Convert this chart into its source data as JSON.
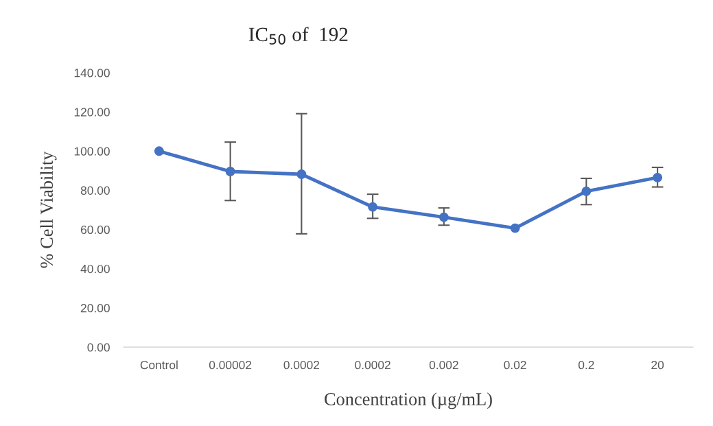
{
  "chart_data": {
    "type": "line",
    "title": "IC$_{50}$ of  192",
    "xlabel": "Concentration (µg/mL)",
    "ylabel": "% Cell Viability",
    "categories": [
      "Control",
      "0.00002",
      "0.0002",
      "0.0002",
      "0.002",
      "0.02",
      "0.2",
      "20"
    ],
    "values": [
      100.0,
      89.6,
      88.2,
      71.5,
      66.3,
      60.7,
      79.5,
      86.5
    ],
    "errors": [
      null,
      [
        74.8,
        104.6
      ],
      [
        57.8,
        119.1
      ],
      [
        65.7,
        78.0
      ],
      [
        62.2,
        71.0
      ],
      null,
      [
        72.7,
        86.1
      ],
      [
        81.7,
        91.7
      ]
    ],
    "color": "#4472c4",
    "marker": "circle",
    "line_style": "solid",
    "grid": false,
    "legend": false,
    "ylim": [
      0,
      140
    ],
    "yticks": [
      {
        "value": 0,
        "label": "0.00"
      },
      {
        "value": 20,
        "label": "20.00"
      },
      {
        "value": 40,
        "label": "40.00"
      },
      {
        "value": 60,
        "label": "60.00"
      },
      {
        "value": 80,
        "label": "80.00"
      },
      {
        "value": 100,
        "label": "100.00"
      },
      {
        "value": 120,
        "label": "120.00"
      },
      {
        "value": 140,
        "label": "140.00"
      }
    ]
  }
}
